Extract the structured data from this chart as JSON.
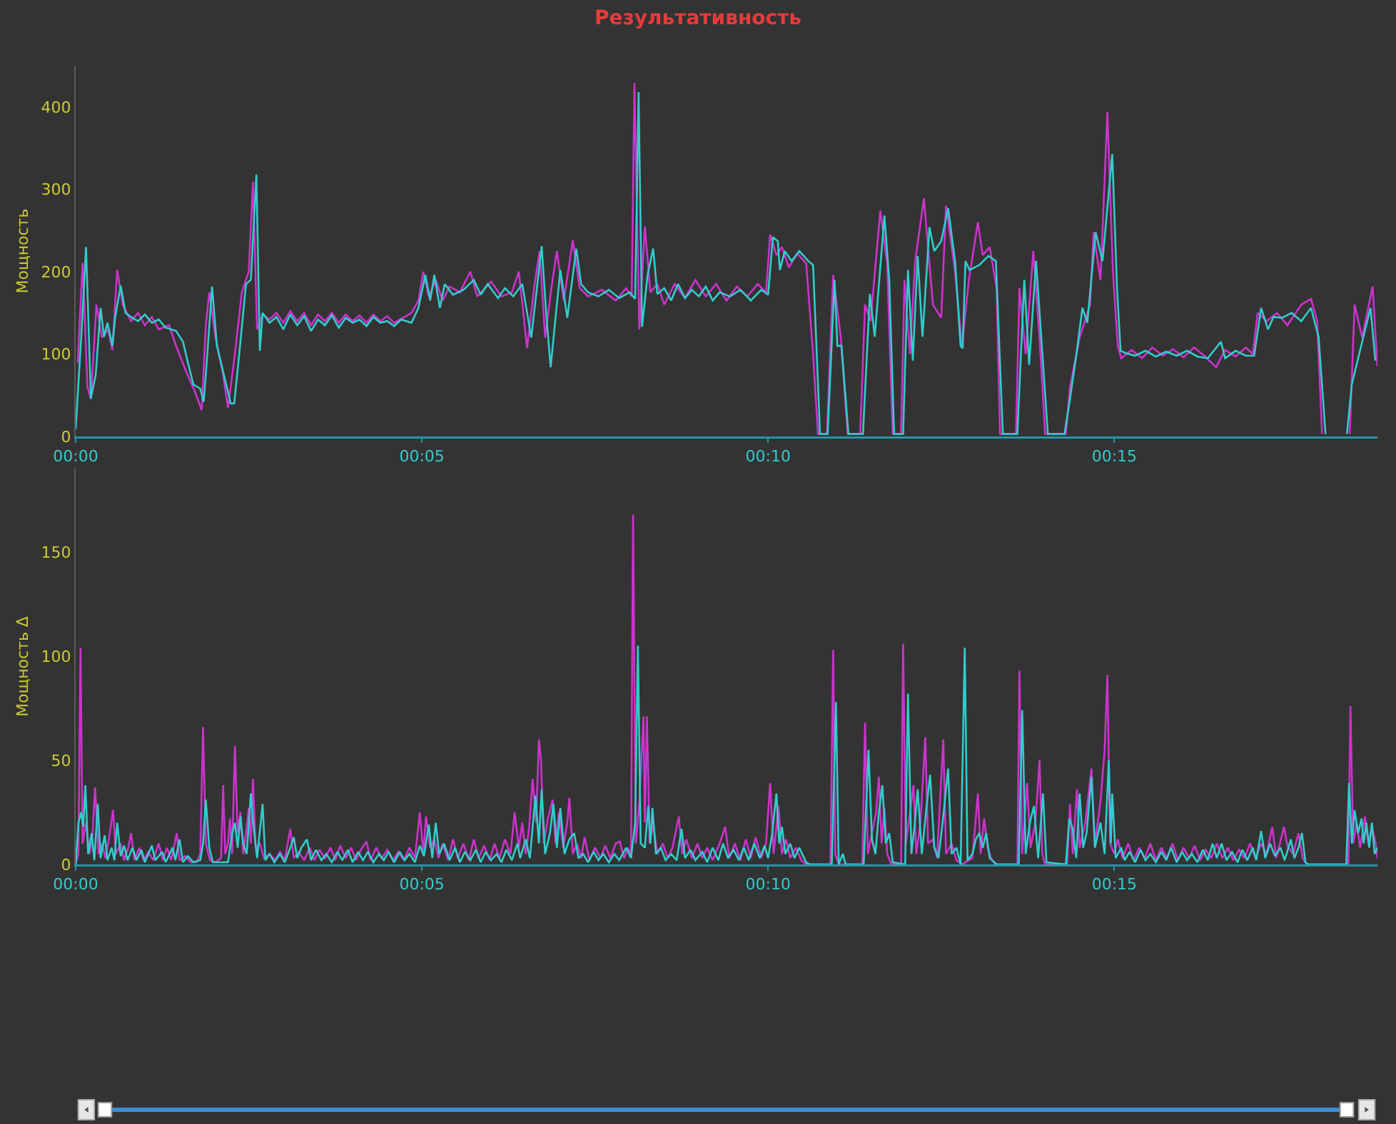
{
  "chart_data": [
    {
      "type": "line",
      "title": "Результативность",
      "ylabel": "Мощность",
      "xlim": [
        0,
        18.8
      ],
      "xticks": [
        {
          "value": 0,
          "label": "00:00"
        },
        {
          "value": 5,
          "label": "00:05"
        },
        {
          "value": 10,
          "label": "00:10"
        },
        {
          "value": 15,
          "label": "00:15"
        }
      ],
      "ylim": [
        0,
        450
      ],
      "yticks": [
        0,
        100,
        200,
        300,
        400
      ],
      "series": [
        {
          "color": "#cc33cc",
          "x": [
            0.03,
            0.1,
            0.17,
            0.22,
            0.3,
            0.38,
            0.47,
            0.53,
            0.6,
            0.68,
            0.8,
            0.9,
            1.0,
            1.1,
            1.2,
            1.35,
            1.45,
            1.6,
            1.72,
            1.82,
            1.88,
            1.93,
            2.02,
            2.12,
            2.2,
            2.3,
            2.4,
            2.5,
            2.56,
            2.62,
            2.7,
            2.8,
            2.9,
            3.0,
            3.1,
            3.2,
            3.3,
            3.4,
            3.5,
            3.6,
            3.7,
            3.8,
            3.9,
            4.0,
            4.1,
            4.2,
            4.3,
            4.4,
            4.5,
            4.6,
            4.75,
            4.85,
            4.95,
            5.02,
            5.1,
            5.2,
            5.3,
            5.4,
            5.55,
            5.7,
            5.8,
            6.0,
            6.15,
            6.3,
            6.4,
            6.52,
            6.62,
            6.7,
            6.78,
            6.87,
            6.95,
            7.05,
            7.18,
            7.28,
            7.4,
            7.6,
            7.8,
            7.95,
            8.03,
            8.07,
            8.14,
            8.22,
            8.3,
            8.4,
            8.5,
            8.65,
            8.8,
            8.95,
            9.1,
            9.25,
            9.4,
            9.55,
            9.7,
            9.85,
            9.97,
            10.03,
            10.12,
            10.2,
            10.3,
            10.42,
            10.55,
            10.65,
            10.72,
            10.85,
            10.94,
            11.05,
            11.15,
            11.33,
            11.4,
            11.48,
            11.62,
            11.72,
            11.8,
            11.92,
            11.97,
            12.05,
            12.12,
            12.25,
            12.38,
            12.5,
            12.57,
            12.7,
            12.8,
            12.9,
            13.03,
            13.1,
            13.2,
            13.3,
            13.35,
            13.58,
            13.63,
            13.72,
            13.83,
            13.92,
            14.0,
            14.3,
            14.36,
            14.5,
            14.65,
            14.7,
            14.8,
            14.9,
            14.98,
            15.05,
            15.1,
            15.25,
            15.4,
            15.55,
            15.7,
            15.85,
            16.0,
            16.15,
            16.3,
            16.47,
            16.6,
            16.75,
            16.9,
            17.0,
            17.07,
            17.2,
            17.35,
            17.5,
            17.7,
            17.84,
            17.93,
            18.0,
            18.2,
            18.4,
            18.47,
            18.58,
            18.73,
            18.8
          ],
          "values": [
            90,
            211,
            60,
            45,
            160,
            120,
            130,
            105,
            202,
            160,
            140,
            150,
            135,
            145,
            130,
            135,
            110,
            78,
            55,
            32,
            135,
            175,
            120,
            80,
            35,
            100,
            175,
            200,
            309,
            130,
            148,
            142,
            150,
            138,
            152,
            140,
            150,
            135,
            148,
            140,
            150,
            138,
            148,
            140,
            147,
            138,
            148,
            140,
            146,
            138,
            145,
            150,
            165,
            200,
            170,
            190,
            165,
            182,
            175,
            200,
            170,
            188,
            170,
            175,
            200,
            107,
            180,
            225,
            120,
            180,
            225,
            165,
            238,
            180,
            170,
            178,
            165,
            180,
            170,
            429,
            130,
            255,
            175,
            185,
            160,
            185,
            168,
            190,
            170,
            185,
            165,
            182,
            170,
            185,
            175,
            245,
            220,
            230,
            205,
            222,
            210,
            100,
            3,
            3,
            196,
            120,
            3,
            3,
            160,
            140,
            274,
            210,
            3,
            3,
            190,
            100,
            210,
            289,
            160,
            144,
            280,
            200,
            110,
            190,
            260,
            220,
            230,
            180,
            3,
            3,
            180,
            100,
            225,
            120,
            3,
            3,
            60,
            120,
            160,
            248,
            190,
            394,
            200,
            110,
            95,
            105,
            95,
            108,
            98,
            106,
            96,
            108,
            98,
            84,
            105,
            97,
            108,
            100,
            150,
            140,
            150,
            135,
            160,
            167,
            140,
            3,
            null,
            3,
            160,
            120,
            182,
            85
          ]
        },
        {
          "color": "#33cccc",
          "x": [
            0,
            0.08,
            0.15,
            0.22,
            0.29,
            0.36,
            0.41,
            0.46,
            0.53,
            0.57,
            0.65,
            0.72,
            0.8,
            0.9,
            1.0,
            1.1,
            1.2,
            1.3,
            1.45,
            1.55,
            1.62,
            1.7,
            1.8,
            1.85,
            1.9,
            1.97,
            2.04,
            2.14,
            2.24,
            2.29,
            2.36,
            2.46,
            2.53,
            2.61,
            2.66,
            2.7,
            2.8,
            2.9,
            3.0,
            3.1,
            3.2,
            3.3,
            3.4,
            3.5,
            3.6,
            3.7,
            3.8,
            3.9,
            4.0,
            4.1,
            4.2,
            4.3,
            4.4,
            4.5,
            4.6,
            4.7,
            4.85,
            4.95,
            5.05,
            5.12,
            5.18,
            5.26,
            5.33,
            5.45,
            5.6,
            5.75,
            5.85,
            5.95,
            6.1,
            6.2,
            6.32,
            6.45,
            6.58,
            6.73,
            6.8,
            6.86,
            6.93,
            7.0,
            7.1,
            7.23,
            7.3,
            7.4,
            7.55,
            7.7,
            7.85,
            8.0,
            8.08,
            8.13,
            8.18,
            8.26,
            8.34,
            8.4,
            8.5,
            8.6,
            8.7,
            8.8,
            8.9,
            9.0,
            9.1,
            9.2,
            9.3,
            9.45,
            9.6,
            9.75,
            9.9,
            10.0,
            10.07,
            10.14,
            10.17,
            10.24,
            10.34,
            10.45,
            10.58,
            10.65,
            10.75,
            10.86,
            10.96,
            11.0,
            11.06,
            11.16,
            11.37,
            11.47,
            11.54,
            11.68,
            11.75,
            11.82,
            11.95,
            12.02,
            12.09,
            12.16,
            12.23,
            12.33,
            12.4,
            12.5,
            12.6,
            12.7,
            12.78,
            12.81,
            12.85,
            12.91,
            13.05,
            13.18,
            13.29,
            13.39,
            13.6,
            13.7,
            13.77,
            13.87,
            14.04,
            14.28,
            14.35,
            14.45,
            14.54,
            14.61,
            14.73,
            14.83,
            14.97,
            15.04,
            15.09,
            15.17,
            15.3,
            15.45,
            15.6,
            15.75,
            15.9,
            16.05,
            16.2,
            16.35,
            16.54,
            16.6,
            16.75,
            16.9,
            17.02,
            17.12,
            17.22,
            17.3,
            17.42,
            17.56,
            17.7,
            17.84,
            17.95,
            18.05,
            18.2,
            18.36,
            18.43,
            18.53,
            18.7,
            18.77
          ],
          "values": [
            9,
            120,
            230,
            46,
            75,
            156,
            121,
            138,
            110,
            144,
            183,
            150,
            145,
            140,
            148,
            138,
            142,
            132,
            128,
            115,
            90,
            63,
            58,
            42,
            98,
            182,
            110,
            75,
            40,
            40,
            98,
            185,
            190,
            318,
            104,
            150,
            138,
            145,
            130,
            148,
            135,
            146,
            128,
            142,
            135,
            147,
            132,
            144,
            138,
            142,
            134,
            145,
            138,
            140,
            134,
            142,
            138,
            156,
            196,
            165,
            196,
            156,
            185,
            172,
            178,
            190,
            172,
            185,
            168,
            180,
            170,
            185,
            120,
            231,
            144,
            84,
            144,
            202,
            144,
            228,
            185,
            175,
            170,
            178,
            168,
            175,
            167,
            418,
            133,
            196,
            228,
            173,
            180,
            165,
            185,
            168,
            178,
            170,
            182,
            165,
            175,
            170,
            178,
            165,
            178,
            172,
            242,
            237,
            202,
            225,
            213,
            225,
            213,
            208,
            3,
            3,
            190,
            110,
            110,
            3,
            3,
            173,
            121,
            268,
            190,
            3,
            3,
            202,
            92,
            219,
            121,
            254,
            225,
            237,
            277,
            213,
            110,
            107,
            213,
            202,
            208,
            219,
            213,
            3,
            3,
            190,
            87,
            213,
            3,
            3,
            40,
            98,
            156,
            138,
            248,
            213,
            343,
            179,
            104,
            101,
            98,
            104,
            97,
            103,
            98,
            104,
            97,
            95,
            115,
            95,
            104,
            98,
            98,
            156,
            130,
            145,
            144,
            150,
            140,
            156,
            121,
            3,
            null,
            3,
            63,
            98,
            156,
            92
          ]
        }
      ]
    },
    {
      "type": "line",
      "ylabel": "Мощность Δ",
      "xlim": [
        0,
        18.8
      ],
      "xticks": [
        {
          "value": 0,
          "label": "00:00"
        },
        {
          "value": 5,
          "label": "00:05"
        },
        {
          "value": 10,
          "label": "00:10"
        },
        {
          "value": 15,
          "label": "00:15"
        }
      ],
      "ylim": [
        0,
        190
      ],
      "yticks": [
        0,
        50,
        100,
        150
      ],
      "series": [
        {
          "color": "#cc33cc",
          "x": [
            0,
            0.04,
            0.07,
            0.1,
            0.15,
            0.2,
            0.24,
            0.28,
            0.33,
            0.38,
            0.43,
            0.48,
            0.54,
            0.58,
            0.65,
            0.7,
            0.76,
            0.8,
            0.85,
            0.92,
            0.98,
            1.05,
            1.12,
            1.2,
            1.26,
            1.32,
            1.38,
            1.46,
            1.5,
            1.58,
            1.66,
            1.75,
            1.8,
            1.84,
            1.88,
            1.94,
            2.02,
            2.1,
            2.13,
            2.16,
            2.2,
            2.23,
            2.26,
            2.3,
            2.34,
            2.38,
            2.42,
            2.46,
            2.5,
            2.53,
            2.56,
            2.6,
            2.66,
            2.72,
            2.8,
            2.88,
            2.95,
            3.02,
            3.1,
            3.15,
            3.22,
            3.3,
            3.38,
            3.45,
            3.52,
            3.6,
            3.68,
            3.75,
            3.82,
            3.9,
            3.98,
            4.05,
            4.12,
            4.2,
            4.26,
            4.34,
            4.42,
            4.5,
            4.58,
            4.66,
            4.74,
            4.82,
            4.9,
            4.97,
            5.02,
            5.06,
            5.12,
            5.18,
            5.24,
            5.3,
            5.38,
            5.45,
            5.52,
            5.6,
            5.68,
            5.75,
            5.82,
            5.9,
            5.98,
            6.05,
            6.12,
            6.2,
            6.28,
            6.34,
            6.4,
            6.45,
            6.5,
            6.55,
            6.6,
            6.65,
            6.69,
            6.72,
            6.76,
            6.82,
            6.89,
            6.93,
            6.98,
            7.04,
            7.1,
            7.13,
            7.18,
            7.24,
            7.3,
            7.35,
            7.42,
            7.5,
            7.58,
            7.65,
            7.72,
            7.8,
            7.86,
            7.92,
            7.98,
            8.02,
            8.05,
            8.09,
            8.14,
            8.2,
            8.22,
            8.25,
            8.29,
            8.34,
            8.4,
            8.48,
            8.55,
            8.62,
            8.71,
            8.76,
            8.82,
            8.9,
            8.98,
            9.05,
            9.12,
            9.2,
            9.3,
            9.38,
            9.44,
            9.52,
            9.6,
            9.68,
            9.75,
            9.82,
            9.9,
            9.97,
            10.03,
            10.08,
            10.15,
            10.2,
            10.26,
            10.32,
            10.4,
            10.48,
            10.55,
            10.9,
            10.94,
            10.97,
            11.02,
            11.36,
            11.4,
            11.44,
            11.5,
            11.56,
            11.6,
            11.64,
            11.68,
            11.72,
            11.78,
            11.92,
            11.95,
            11.99,
            12.05,
            12.1,
            12.14,
            12.2,
            12.27,
            12.31,
            12.38,
            12.44,
            12.53,
            12.57,
            12.65,
            12.72,
            12.8,
            12.95,
            13.03,
            13.07,
            13.12,
            13.17,
            13.22,
            13.28,
            13.6,
            13.63,
            13.67,
            13.74,
            13.79,
            13.86,
            13.92,
            13.96,
            14.0,
            14.32,
            14.36,
            14.4,
            14.46,
            14.5,
            14.58,
            14.67,
            14.72,
            14.8,
            14.86,
            14.9,
            14.94,
            15.0,
            15.05,
            15.12,
            15.2,
            15.28,
            15.36,
            15.44,
            15.52,
            15.6,
            15.68,
            15.76,
            15.84,
            15.92,
            16.0,
            16.08,
            16.16,
            16.24,
            16.32,
            16.4,
            16.48,
            16.56,
            16.64,
            16.72,
            16.8,
            16.88,
            16.96,
            17.04,
            17.12,
            17.2,
            17.28,
            17.34,
            17.45,
            17.5,
            17.58,
            17.66,
            17.72,
            17.78,
            18.38,
            18.41,
            18.45,
            18.5,
            18.55,
            18.62,
            18.67,
            18.72,
            18.77,
            18.8
          ],
          "values": [
            0,
            5,
            104,
            10,
            20,
            5,
            12,
            37,
            5,
            10,
            3,
            12,
            26,
            5,
            10,
            2,
            8,
            15,
            2,
            8,
            2,
            6,
            2,
            10,
            2,
            8,
            2,
            15,
            2,
            4,
            1,
            1,
            5,
            66,
            10,
            2,
            1,
            3,
            38,
            5,
            10,
            22,
            5,
            57,
            15,
            25,
            5,
            15,
            27,
            10,
            41,
            8,
            10,
            3,
            5,
            2,
            6,
            2,
            17,
            3,
            6,
            2,
            8,
            2,
            7,
            3,
            8,
            2,
            9,
            3,
            8,
            2,
            7,
            11,
            2,
            8,
            3,
            7,
            2,
            6,
            2,
            8,
            3,
            25,
            5,
            23,
            8,
            12,
            3,
            10,
            2,
            12,
            3,
            10,
            2,
            12,
            3,
            9,
            2,
            10,
            3,
            12,
            5,
            25,
            8,
            20,
            5,
            18,
            41,
            20,
            60,
            50,
            10,
            22,
            31,
            10,
            25,
            8,
            20,
            32,
            5,
            10,
            3,
            13,
            2,
            8,
            3,
            9,
            3,
            10,
            11,
            3,
            8,
            3,
            168,
            10,
            30,
            71,
            20,
            71,
            10,
            20,
            5,
            10,
            3,
            8,
            23,
            5,
            12,
            3,
            10,
            3,
            8,
            2,
            10,
            18,
            3,
            10,
            2,
            12,
            3,
            13,
            3,
            10,
            39,
            5,
            28,
            5,
            12,
            3,
            8,
            2,
            0,
            0,
            103,
            5,
            0,
            0,
            68,
            5,
            15,
            25,
            42,
            10,
            27,
            5,
            0,
            0,
            106,
            10,
            25,
            38,
            5,
            20,
            61,
            10,
            12,
            3,
            60,
            5,
            10,
            2,
            0,
            3,
            34,
            5,
            22,
            8,
            3,
            0,
            0,
            93,
            5,
            39,
            8,
            20,
            50,
            5,
            0,
            0,
            29,
            5,
            36,
            8,
            20,
            46,
            10,
            30,
            55,
            91,
            10,
            5,
            12,
            3,
            10,
            2,
            8,
            3,
            10,
            2,
            8,
            3,
            10,
            2,
            8,
            3,
            9,
            2,
            7,
            3,
            10,
            3,
            8,
            2,
            7,
            3,
            10,
            3,
            10,
            5,
            18,
            3,
            18,
            9,
            5,
            15,
            3,
            0,
            0,
            76,
            10,
            20,
            8,
            23,
            10,
            18,
            11,
            3
          ]
        },
        {
          "color": "#33cccc",
          "x": [
            0,
            0.04,
            0.08,
            0.11,
            0.14,
            0.18,
            0.23,
            0.27,
            0.32,
            0.36,
            0.42,
            0.46,
            0.52,
            0.56,
            0.6,
            0.65,
            0.7,
            0.75,
            0.82,
            0.88,
            0.95,
            1.0,
            1.1,
            1.15,
            1.25,
            1.3,
            1.4,
            1.44,
            1.5,
            1.55,
            1.62,
            1.7,
            1.8,
            1.84,
            1.88,
            1.93,
            1.98,
            2.1,
            2.2,
            2.26,
            2.3,
            2.34,
            2.38,
            2.42,
            2.47,
            2.53,
            2.57,
            2.62,
            2.7,
            2.74,
            2.8,
            2.87,
            2.95,
            3.02,
            3.1,
            3.15,
            3.2,
            3.26,
            3.34,
            3.4,
            3.47,
            3.55,
            3.62,
            3.7,
            3.78,
            3.85,
            3.93,
            4.0,
            4.08,
            4.15,
            4.22,
            4.3,
            4.38,
            4.45,
            4.52,
            4.6,
            4.68,
            4.75,
            4.82,
            4.9,
            4.97,
            5.03,
            5.1,
            5.15,
            5.2,
            5.25,
            5.32,
            5.4,
            5.48,
            5.55,
            5.62,
            5.7,
            5.78,
            5.85,
            5.92,
            6.0,
            6.08,
            6.15,
            6.22,
            6.3,
            6.38,
            6.42,
            6.5,
            6.56,
            6.64,
            6.69,
            6.73,
            6.78,
            6.85,
            6.9,
            6.95,
            7.0,
            7.06,
            7.13,
            7.2,
            7.26,
            7.33,
            7.4,
            7.48,
            7.55,
            7.62,
            7.7,
            7.78,
            7.85,
            7.95,
            8.02,
            8.08,
            8.12,
            8.16,
            8.22,
            8.27,
            8.3,
            8.33,
            8.38,
            8.45,
            8.52,
            8.6,
            8.68,
            8.75,
            8.8,
            8.88,
            8.95,
            9.05,
            9.12,
            9.2,
            9.28,
            9.35,
            9.42,
            9.5,
            9.58,
            9.65,
            9.72,
            9.8,
            9.88,
            9.95,
            10.0,
            10.06,
            10.12,
            10.16,
            10.2,
            10.25,
            10.32,
            10.38,
            10.45,
            10.55,
            10.6,
            10.92,
            10.98,
            11.02,
            11.08,
            11.12,
            11.38,
            11.45,
            11.5,
            11.55,
            11.6,
            11.65,
            11.7,
            11.75,
            11.8,
            11.98,
            12.02,
            12.07,
            12.12,
            12.16,
            12.22,
            12.28,
            12.34,
            12.4,
            12.46,
            12.52,
            12.6,
            12.65,
            12.72,
            12.78,
            12.84,
            12.88,
            12.95,
            13.0,
            13.05,
            13.1,
            13.15,
            13.2,
            13.3,
            13.62,
            13.67,
            13.72,
            13.78,
            13.84,
            13.9,
            13.97,
            14.02,
            14.3,
            14.35,
            14.4,
            14.45,
            14.5,
            14.55,
            14.6,
            14.67,
            14.72,
            14.8,
            14.86,
            14.92,
            14.95,
            14.97,
            15.02,
            15.1,
            15.15,
            15.22,
            15.3,
            15.38,
            15.45,
            15.52,
            15.6,
            15.68,
            15.75,
            15.82,
            15.9,
            15.98,
            16.05,
            16.12,
            16.2,
            16.28,
            16.35,
            16.42,
            16.48,
            16.55,
            16.62,
            16.7,
            16.78,
            16.85,
            16.92,
            17.0,
            17.05,
            17.12,
            17.18,
            17.25,
            17.32,
            17.4,
            17.46,
            17.55,
            17.6,
            17.66,
            17.71,
            17.76,
            17.8,
            18.35,
            18.39,
            18.43,
            18.47,
            18.52,
            18.57,
            18.6,
            18.64,
            18.68,
            18.72,
            18.76,
            18.8
          ],
          "values": [
            0,
            20,
            25,
            18,
            38,
            5,
            15,
            2,
            29,
            3,
            14,
            2,
            8,
            2,
            20,
            4,
            9,
            2,
            8,
            2,
            7,
            1,
            9,
            2,
            6,
            1,
            8,
            2,
            12,
            1,
            4,
            1,
            2,
            10,
            31,
            8,
            1,
            1,
            1,
            15,
            20,
            8,
            23,
            10,
            5,
            34,
            18,
            3,
            29,
            2,
            5,
            1,
            5,
            1,
            8,
            13,
            3,
            8,
            12,
            2,
            7,
            2,
            5,
            1,
            6,
            2,
            7,
            1,
            6,
            2,
            6,
            1,
            5,
            2,
            6,
            1,
            6,
            2,
            5,
            1,
            9,
            4,
            19,
            3,
            20,
            5,
            10,
            2,
            8,
            1,
            6,
            2,
            7,
            1,
            6,
            2,
            5,
            1,
            7,
            2,
            10,
            3,
            12,
            3,
            33,
            10,
            36,
            5,
            15,
            29,
            8,
            27,
            5,
            12,
            15,
            3,
            5,
            1,
            6,
            2,
            5,
            1,
            5,
            2,
            8,
            3,
            20,
            105,
            10,
            8,
            28,
            10,
            27,
            5,
            8,
            2,
            5,
            2,
            17,
            3,
            7,
            2,
            6,
            1,
            8,
            2,
            10,
            3,
            7,
            2,
            8,
            2,
            10,
            3,
            9,
            3,
            15,
            34,
            10,
            18,
            5,
            10,
            3,
            8,
            1,
            0,
            0,
            78,
            0,
            5,
            0,
            0,
            55,
            12,
            5,
            25,
            38,
            10,
            15,
            1,
            0,
            82,
            5,
            20,
            36,
            5,
            25,
            43,
            8,
            3,
            20,
            46,
            5,
            8,
            0,
            104,
            2,
            5,
            12,
            15,
            8,
            15,
            3,
            0,
            0,
            74,
            5,
            20,
            28,
            3,
            34,
            1,
            0,
            22,
            17,
            3,
            34,
            8,
            15,
            42,
            8,
            20,
            5,
            50,
            10,
            34,
            3,
            8,
            2,
            6,
            1,
            7,
            2,
            5,
            1,
            6,
            2,
            8,
            1,
            6,
            2,
            5,
            1,
            7,
            2,
            10,
            3,
            10,
            2,
            6,
            1,
            7,
            2,
            8,
            2,
            16,
            3,
            10,
            4,
            8,
            2,
            12,
            3,
            8,
            15,
            1,
            0,
            0,
            39,
            10,
            26,
            15,
            22,
            10,
            20,
            8,
            20,
            5,
            8
          ]
        }
      ]
    }
  ]
}
